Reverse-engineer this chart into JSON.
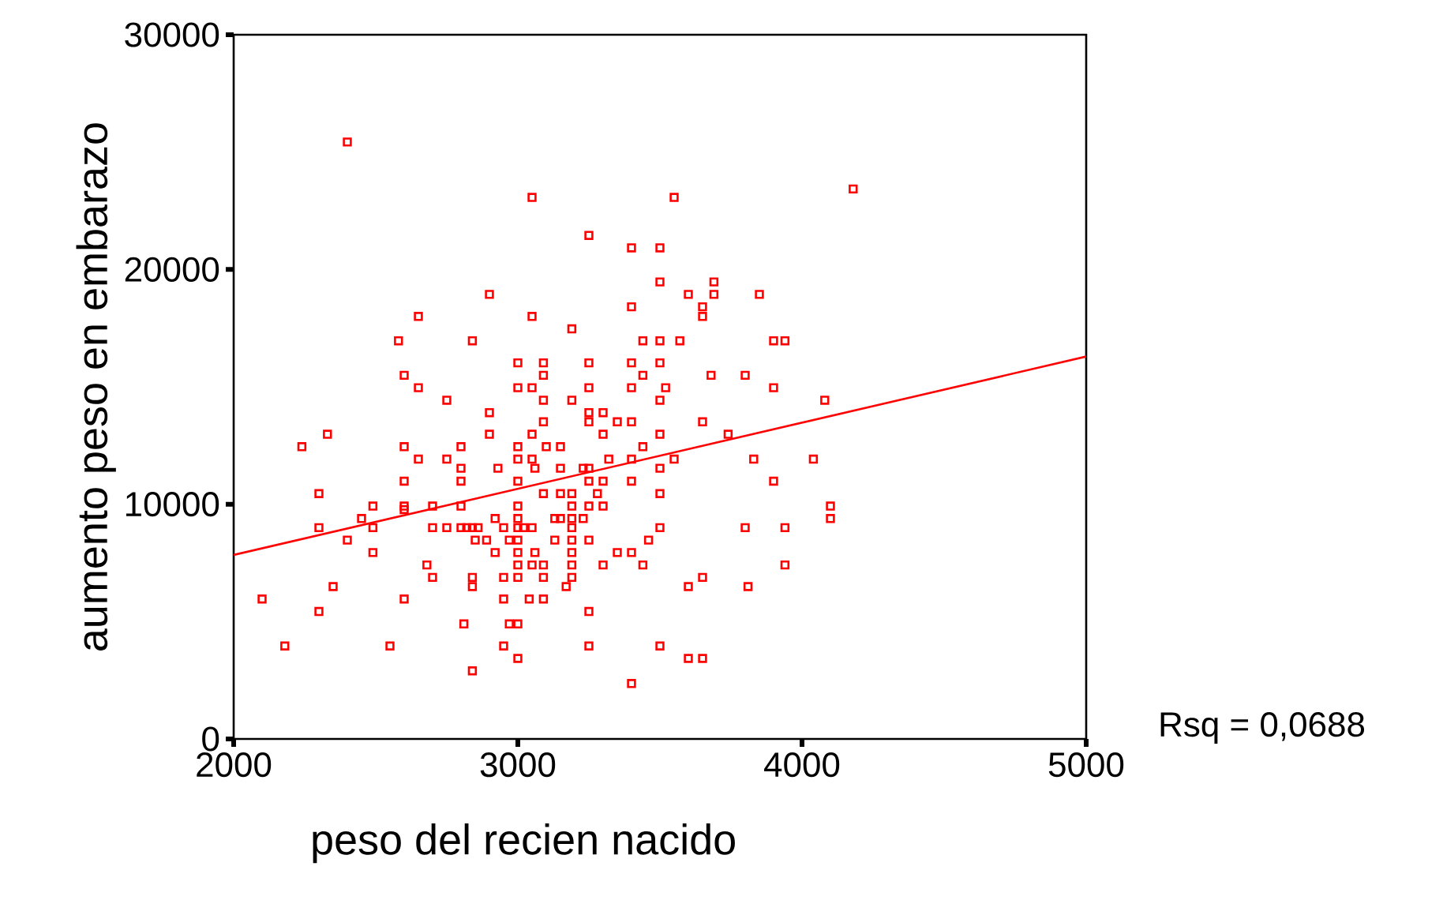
{
  "chart_data": {
    "type": "scatter",
    "xlabel": "peso del recien nacido",
    "ylabel": "aumento peso en embarazo",
    "xlim": [
      2000,
      5000
    ],
    "xticks": [
      2000,
      3000,
      4000,
      5000
    ],
    "ylim": [
      0,
      30000
    ],
    "yticks": [
      0,
      10000,
      20000,
      30000
    ],
    "grid": false,
    "marker": "square",
    "annotations": [
      "Rsq = 0,0688"
    ],
    "series": [
      {
        "color": "#ff0000",
        "x": [
          2400,
          3050,
          3550,
          4180,
          3250,
          3400,
          3500,
          3500,
          3690,
          2900,
          3600,
          3690,
          3850,
          3400,
          3650,
          2650,
          3050,
          3650,
          3190,
          2580,
          2840,
          3440,
          3500,
          3570,
          3900,
          3940,
          3000,
          3090,
          3250,
          3400,
          3500,
          2600,
          3090,
          3440,
          3680,
          3800,
          2650,
          3000,
          3050,
          3250,
          3400,
          3520,
          3900,
          2750,
          3090,
          3190,
          3500,
          4080,
          2900,
          3250,
          3300,
          3090,
          3250,
          3350,
          3400,
          3650,
          2330,
          2900,
          3050,
          3300,
          3500,
          3740,
          2240,
          2600,
          2800,
          3000,
          3100,
          3150,
          3440,
          2650,
          2750,
          3000,
          3050,
          3320,
          3400,
          3550,
          3830,
          4040,
          2800,
          2930,
          3060,
          3150,
          3230,
          3250,
          3500,
          2600,
          2800,
          3000,
          3250,
          3300,
          3400,
          3900,
          2300,
          3090,
          3150,
          3190,
          3280,
          3500,
          2490,
          2600,
          2700,
          2800,
          3000,
          3190,
          3250,
          3300,
          4100,
          2600,
          2450,
          2920,
          3000,
          3130,
          3150,
          3190,
          3230,
          4100,
          2300,
          2490,
          2700,
          2750,
          2800,
          2820,
          2840,
          2860,
          2950,
          3000,
          3020,
          3050,
          3190,
          3500,
          3800,
          3940,
          2400,
          2850,
          2890,
          2970,
          3000,
          3130,
          3190,
          3250,
          3460,
          2490,
          2920,
          3000,
          3060,
          3190,
          3350,
          3400,
          2680,
          3000,
          3050,
          3090,
          3190,
          3300,
          3440,
          3940,
          2700,
          2840,
          2950,
          3000,
          3090,
          3190,
          3650,
          2350,
          2840,
          3170,
          3600,
          3810,
          2100,
          2600,
          2950,
          3040,
          3090,
          2300,
          3250,
          2810,
          2970,
          3000,
          2180,
          2550,
          2950,
          3250,
          3500,
          3000,
          3600,
          3650,
          2840,
          3400
        ],
        "values": [
          25430,
          23070,
          23070,
          23430,
          21450,
          20920,
          20920,
          19470,
          19470,
          18940,
          18940,
          18940,
          18940,
          18410,
          18410,
          18000,
          18000,
          18000,
          17470,
          16960,
          16960,
          16960,
          16960,
          16960,
          16960,
          16960,
          16020,
          16020,
          16020,
          16020,
          16020,
          15490,
          15490,
          15490,
          15490,
          15490,
          14960,
          14960,
          14960,
          14960,
          14960,
          14960,
          14960,
          14430,
          14430,
          14430,
          14430,
          14430,
          13900,
          13900,
          13900,
          13510,
          13510,
          13510,
          13510,
          13510,
          12980,
          12980,
          12980,
          12980,
          12980,
          12980,
          12450,
          12450,
          12450,
          12450,
          12450,
          12450,
          12450,
          11920,
          11920,
          11920,
          11920,
          11920,
          11920,
          11920,
          11920,
          11920,
          11530,
          11530,
          11530,
          11530,
          11530,
          11530,
          11530,
          10980,
          10980,
          10980,
          10980,
          10980,
          10980,
          10980,
          10450,
          10450,
          10450,
          10450,
          10450,
          10450,
          9920,
          9920,
          9920,
          9920,
          9920,
          9920,
          9920,
          9920,
          9920,
          9770,
          9390,
          9390,
          9390,
          9390,
          9390,
          9390,
          9390,
          9390,
          9000,
          9000,
          9000,
          9000,
          9000,
          9000,
          9000,
          9000,
          9000,
          9000,
          9000,
          9000,
          9000,
          9000,
          9000,
          9000,
          8470,
          8470,
          8470,
          8470,
          8470,
          8470,
          8470,
          8470,
          8470,
          7940,
          7940,
          7940,
          7940,
          7940,
          7940,
          7940,
          7410,
          7410,
          7410,
          7410,
          7410,
          7410,
          7410,
          7410,
          6880,
          6880,
          6880,
          6880,
          6880,
          6880,
          6880,
          6490,
          6490,
          6490,
          6490,
          6490,
          5960,
          5960,
          5960,
          5960,
          5960,
          5430,
          5430,
          4900,
          4900,
          4900,
          3960,
          3960,
          3960,
          3960,
          3960,
          3430,
          3430,
          3430,
          2900,
          2360
        ]
      },
      {
        "type": "line",
        "marker": "none",
        "color": "#ff0000",
        "x": [
          2000,
          5000
        ],
        "values": [
          7840,
          16290
        ]
      }
    ]
  }
}
